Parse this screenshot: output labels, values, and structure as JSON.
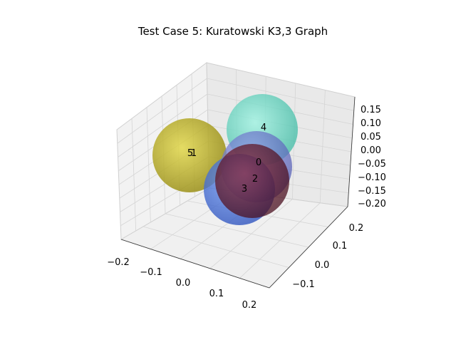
{
  "chart_data": {
    "type": "scatter3d",
    "title": "Test Case 5: Kuratowski K3,3 Graph",
    "xlabel": "",
    "ylabel": "",
    "zlabel": "",
    "x_ticks": [
      "−0.2",
      "−0.1",
      "0.0",
      "0.1",
      "0.2"
    ],
    "y_ticks": [
      "−0.1",
      "0.0",
      "0.1",
      "0.2"
    ],
    "z_ticks": [
      "0.15",
      "0.10",
      "0.05",
      "0.00",
      "−0.05",
      "−0.10",
      "−0.15",
      "−0.20"
    ],
    "grid": true,
    "nodes": [
      {
        "label": "5",
        "color": "#c9b800"
      },
      {
        "label": "1",
        "color": "#c9b800"
      },
      {
        "label": "4",
        "color": "#63e0c8"
      },
      {
        "label": "0",
        "color": "#7a86d8"
      },
      {
        "label": "3",
        "color": "#3b6fe0"
      },
      {
        "label": "2",
        "color": "#7a1a2a"
      }
    ]
  }
}
